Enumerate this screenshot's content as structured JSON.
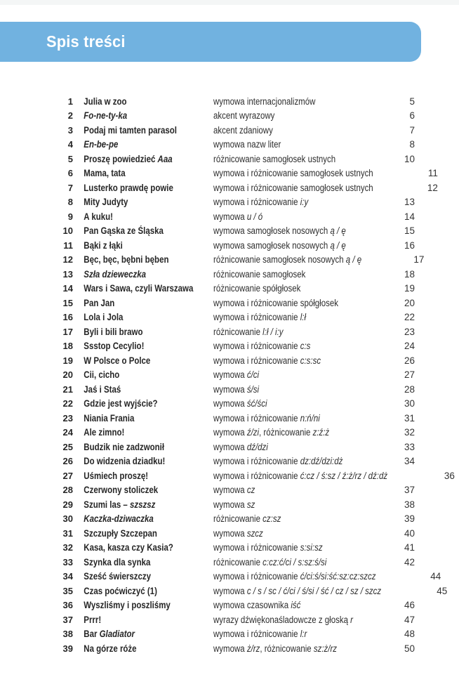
{
  "header": {
    "title": "Spis treści"
  },
  "colors": {
    "header_bg": "#71b2e0",
    "header_text": "#ffffff",
    "body_text": "#262626"
  },
  "toc": {
    "rows": [
      {
        "num": "1",
        "title": [
          {
            "t": "Julia w zoo"
          }
        ],
        "desc": [
          {
            "t": "wymowa internacjonalizmów"
          }
        ],
        "page": "5"
      },
      {
        "num": "2",
        "title": [
          {
            "t": "Fo-ne-ty-ka",
            "i": true
          }
        ],
        "desc": [
          {
            "t": "akcent wyrazowy"
          }
        ],
        "page": "6"
      },
      {
        "num": "3",
        "title": [
          {
            "t": "Podaj mi tamten parasol"
          }
        ],
        "desc": [
          {
            "t": "akcent zdaniowy"
          }
        ],
        "page": "7"
      },
      {
        "num": "4",
        "title": [
          {
            "t": "En-be-pe",
            "i": true
          }
        ],
        "desc": [
          {
            "t": "wymowa nazw liter"
          }
        ],
        "page": "8"
      },
      {
        "num": "5",
        "title": [
          {
            "t": "Proszę powiedzieć "
          },
          {
            "t": "Aaa",
            "i": true
          }
        ],
        "desc": [
          {
            "t": "różnicowanie samogłosek ustnych"
          }
        ],
        "page": "10"
      },
      {
        "num": "6",
        "title": [
          {
            "t": "Mama, tata"
          }
        ],
        "desc": [
          {
            "t": "wymowa i różnicowanie samogłosek ustnych"
          }
        ],
        "page": "11"
      },
      {
        "num": "7",
        "title": [
          {
            "t": "Lusterko prawdę powie"
          }
        ],
        "desc": [
          {
            "t": "wymowa i różnicowanie samogłosek ustnych"
          }
        ],
        "page": "12"
      },
      {
        "num": "8",
        "title": [
          {
            "t": "Mity Judyty"
          }
        ],
        "desc": [
          {
            "t": "wymowa i różnicowanie "
          },
          {
            "t": "i:y",
            "i": true
          }
        ],
        "page": "13"
      },
      {
        "num": "9",
        "title": [
          {
            "t": "A kuku!"
          }
        ],
        "desc": [
          {
            "t": "wymowa "
          },
          {
            "t": "u / ó",
            "i": true
          }
        ],
        "page": "14"
      },
      {
        "num": "10",
        "title": [
          {
            "t": "Pan Gąska ze Śląska"
          }
        ],
        "desc": [
          {
            "t": "wymowa samogłosek nosowych "
          },
          {
            "t": "ą / ę",
            "i": true
          }
        ],
        "page": "15"
      },
      {
        "num": "11",
        "title": [
          {
            "t": "Bąki z łąki"
          }
        ],
        "desc": [
          {
            "t": "wymowa samogłosek nosowych "
          },
          {
            "t": "ą / ę",
            "i": true
          }
        ],
        "page": "16"
      },
      {
        "num": "12",
        "title": [
          {
            "t": "Bęc, bęc, bębni bęben"
          }
        ],
        "desc": [
          {
            "t": "różnicowanie samogłosek nosowych "
          },
          {
            "t": "ą / ę",
            "i": true
          }
        ],
        "page": "17"
      },
      {
        "num": "13",
        "title": [
          {
            "t": "Szła dzieweczka",
            "i": true
          }
        ],
        "desc": [
          {
            "t": "różnicowanie samogłosek"
          }
        ],
        "page": "18"
      },
      {
        "num": "14",
        "title": [
          {
            "t": "Wars i Sawa, czyli Warszawa"
          }
        ],
        "desc": [
          {
            "t": "różnicowanie spółgłosek"
          }
        ],
        "page": "19"
      },
      {
        "num": "15",
        "title": [
          {
            "t": "Pan Jan"
          }
        ],
        "desc": [
          {
            "t": "wymowa i różnicowanie spółgłosek"
          }
        ],
        "page": "20"
      },
      {
        "num": "16",
        "title": [
          {
            "t": "Lola i Jola"
          }
        ],
        "desc": [
          {
            "t": "wymowa i różnicowanie "
          },
          {
            "t": "l:ł",
            "i": true
          }
        ],
        "page": "22"
      },
      {
        "num": "17",
        "title": [
          {
            "t": "Byli i bili brawo"
          }
        ],
        "desc": [
          {
            "t": "różnicowanie "
          },
          {
            "t": "l:ł / i:y",
            "i": true
          }
        ],
        "page": "23"
      },
      {
        "num": "18",
        "title": [
          {
            "t": "Ssstop Cecylio!"
          }
        ],
        "desc": [
          {
            "t": "wymowa i różnicowanie "
          },
          {
            "t": "c:s",
            "i": true
          }
        ],
        "page": "24"
      },
      {
        "num": "19",
        "title": [
          {
            "t": "W Polsce o Polce"
          }
        ],
        "desc": [
          {
            "t": "wymowa i różnicowanie "
          },
          {
            "t": "c:s:sc",
            "i": true
          }
        ],
        "page": "26"
      },
      {
        "num": "20",
        "title": [
          {
            "t": "Cii, cicho"
          }
        ],
        "desc": [
          {
            "t": "wymowa "
          },
          {
            "t": "ć/ci",
            "i": true
          }
        ],
        "page": "27"
      },
      {
        "num": "21",
        "title": [
          {
            "t": "Jaś i Staś"
          }
        ],
        "desc": [
          {
            "t": "wymowa "
          },
          {
            "t": "ś/si",
            "i": true
          }
        ],
        "page": "28"
      },
      {
        "num": "22",
        "title": [
          {
            "t": "Gdzie jest wyjście?"
          }
        ],
        "desc": [
          {
            "t": "wymowa "
          },
          {
            "t": "ść/ści",
            "i": true
          }
        ],
        "page": "30"
      },
      {
        "num": "23",
        "title": [
          {
            "t": "Niania Frania"
          }
        ],
        "desc": [
          {
            "t": "wymowa i różnicowanie "
          },
          {
            "t": "n:ń/ni",
            "i": true
          }
        ],
        "page": "31"
      },
      {
        "num": "24",
        "title": [
          {
            "t": "Ale zimno!"
          }
        ],
        "desc": [
          {
            "t": "wymowa "
          },
          {
            "t": "ź/zi",
            "i": true
          },
          {
            "t": ", różnicowanie "
          },
          {
            "t": "z:ź:ż",
            "i": true
          }
        ],
        "page": "32"
      },
      {
        "num": "25",
        "title": [
          {
            "t": "Budzik nie zadzwonił"
          }
        ],
        "desc": [
          {
            "t": "wymowa "
          },
          {
            "t": "dź/dzi",
            "i": true
          }
        ],
        "page": "33"
      },
      {
        "num": "26",
        "title": [
          {
            "t": "Do widzenia dziadku!"
          }
        ],
        "desc": [
          {
            "t": "wymowa i różnicowanie "
          },
          {
            "t": "dz:dź/dzi:dż",
            "i": true
          }
        ],
        "page": "34"
      },
      {
        "num": "27",
        "title": [
          {
            "t": "Uśmiech proszę!"
          }
        ],
        "desc": [
          {
            "t": "wymowa i różnicowanie "
          },
          {
            "t": "ć:cz / ś:sz / ź:ż/rz / dź:dż",
            "i": true
          }
        ],
        "page": "36"
      },
      {
        "num": "28",
        "title": [
          {
            "t": "Czerwony stoliczek"
          }
        ],
        "desc": [
          {
            "t": "wymowa "
          },
          {
            "t": "cz",
            "i": true
          }
        ],
        "page": "37"
      },
      {
        "num": "29",
        "title": [
          {
            "t": "Szumi las – "
          },
          {
            "t": "szszsz",
            "i": true
          }
        ],
        "desc": [
          {
            "t": "wymowa "
          },
          {
            "t": "sz",
            "i": true
          }
        ],
        "page": "38"
      },
      {
        "num": "30",
        "title": [
          {
            "t": "Kaczka-dziwaczka",
            "i": true
          }
        ],
        "desc": [
          {
            "t": "różnicowanie "
          },
          {
            "t": "cz:sz",
            "i": true
          }
        ],
        "page": "39"
      },
      {
        "num": "31",
        "title": [
          {
            "t": "Szczupły Szczepan"
          }
        ],
        "desc": [
          {
            "t": "wymowa "
          },
          {
            "t": "szcz",
            "i": true
          }
        ],
        "page": "40"
      },
      {
        "num": "32",
        "title": [
          {
            "t": "Kasa, kasza czy Kasia?"
          }
        ],
        "desc": [
          {
            "t": "wymowa i różnicowanie "
          },
          {
            "t": "s:si:sz",
            "i": true
          }
        ],
        "page": "41"
      },
      {
        "num": "33",
        "title": [
          {
            "t": "Szynka dla synka"
          }
        ],
        "desc": [
          {
            "t": "różnicowanie "
          },
          {
            "t": "c:cz:ć/ci / s:sz:ś/si",
            "i": true
          }
        ],
        "page": "42"
      },
      {
        "num": "34",
        "title": [
          {
            "t": "Sześć świerszczy"
          }
        ],
        "desc": [
          {
            "t": "wymowa i różnicowanie "
          },
          {
            "t": "ć/ci:ś/si:ść:sz:cz:szcz",
            "i": true
          }
        ],
        "page": "44"
      },
      {
        "num": "35",
        "title": [
          {
            "t": "Czas poćwiczyć (1)"
          }
        ],
        "desc": [
          {
            "t": "wymowa "
          },
          {
            "t": "c / s / sc / ć/ci / ś/si / ść / cz / sz / szcz",
            "i": true
          }
        ],
        "page": "45"
      },
      {
        "num": "36",
        "title": [
          {
            "t": "Wyszliśmy i poszliśmy"
          }
        ],
        "desc": [
          {
            "t": "wymowa czasownika "
          },
          {
            "t": "iść",
            "i": true
          }
        ],
        "page": "46"
      },
      {
        "num": "37",
        "title": [
          {
            "t": "Prrr!"
          }
        ],
        "desc": [
          {
            "t": "wyrazy dźwiękonaśladowcze z głoską "
          },
          {
            "t": "r",
            "i": true
          }
        ],
        "page": "47"
      },
      {
        "num": "38",
        "title": [
          {
            "t": "Bar "
          },
          {
            "t": "Gladiator",
            "i": true
          }
        ],
        "desc": [
          {
            "t": "wymowa i różnicowanie "
          },
          {
            "t": "l:r",
            "i": true
          }
        ],
        "page": "48"
      },
      {
        "num": "39",
        "title": [
          {
            "t": "Na górze róże"
          }
        ],
        "desc": [
          {
            "t": "wymowa "
          },
          {
            "t": "ż/rz",
            "i": true
          },
          {
            "t": ", różnicowanie "
          },
          {
            "t": "sz:ż/rz",
            "i": true
          }
        ],
        "page": "50"
      }
    ]
  }
}
